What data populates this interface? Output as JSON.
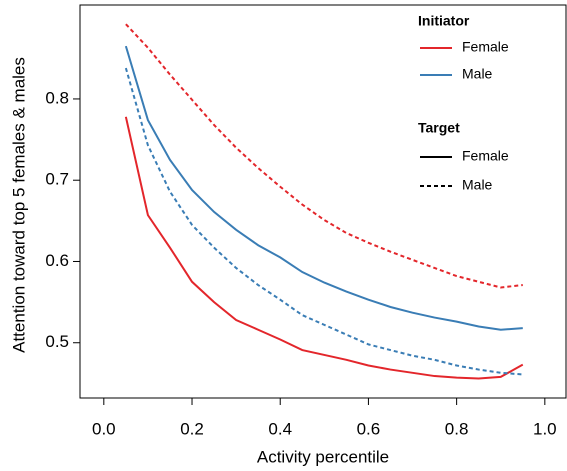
{
  "chart_data": {
    "type": "line",
    "xlabel": "Activity percentile",
    "ylabel": "Attention toward top 5 females & males",
    "x": [
      0.05,
      0.1,
      0.15,
      0.2,
      0.25,
      0.3,
      0.35,
      0.4,
      0.45,
      0.5,
      0.55,
      0.6,
      0.65,
      0.7,
      0.75,
      0.8,
      0.85,
      0.9,
      0.95
    ],
    "series": [
      {
        "color": "#e3262b",
        "dash": false,
        "values": [
          0.778,
          0.657,
          0.617,
          0.575,
          0.55,
          0.528,
          0.516,
          0.504,
          0.491,
          0.485,
          0.479,
          0.472,
          0.467,
          0.463,
          0.459,
          0.457,
          0.456,
          0.458,
          0.473
        ]
      },
      {
        "color": "#3a7db5",
        "dash": false,
        "values": [
          0.865,
          0.774,
          0.725,
          0.688,
          0.661,
          0.639,
          0.62,
          0.605,
          0.587,
          0.574,
          0.563,
          0.553,
          0.544,
          0.537,
          0.531,
          0.526,
          0.52,
          0.516,
          0.518
        ]
      },
      {
        "color": "#e3262b",
        "dash": true,
        "values": [
          0.892,
          0.863,
          0.83,
          0.799,
          0.768,
          0.74,
          0.715,
          0.692,
          0.67,
          0.651,
          0.635,
          0.623,
          0.612,
          0.602,
          0.592,
          0.582,
          0.575,
          0.568,
          0.571
        ]
      },
      {
        "color": "#3a7db5",
        "dash": true,
        "values": [
          0.838,
          0.743,
          0.686,
          0.645,
          0.617,
          0.592,
          0.571,
          0.553,
          0.534,
          0.522,
          0.51,
          0.498,
          0.491,
          0.484,
          0.479,
          0.472,
          0.467,
          0.463,
          0.461
        ]
      }
    ],
    "xlim": [
      -0.054,
      1.048
    ],
    "ylim": [
      0.432,
      0.9156
    ],
    "xticks": [
      {
        "value": 0,
        "label": "0.0"
      },
      0.2,
      0.4,
      0.6,
      0.8,
      {
        "value": 1,
        "label": "1.0"
      }
    ],
    "yticks": [
      0.5,
      0.6,
      0.7,
      0.8
    ],
    "legend": {
      "initiator": {
        "title": "Initiator",
        "entries": [
          {
            "label": "Female",
            "color": "#e3262b"
          },
          {
            "label": "Male",
            "color": "#3a7db5"
          }
        ]
      },
      "target": {
        "title": "Target",
        "entries": [
          {
            "label": "Female",
            "dash": false
          },
          {
            "label": "Male",
            "dash": true
          }
        ]
      }
    }
  }
}
